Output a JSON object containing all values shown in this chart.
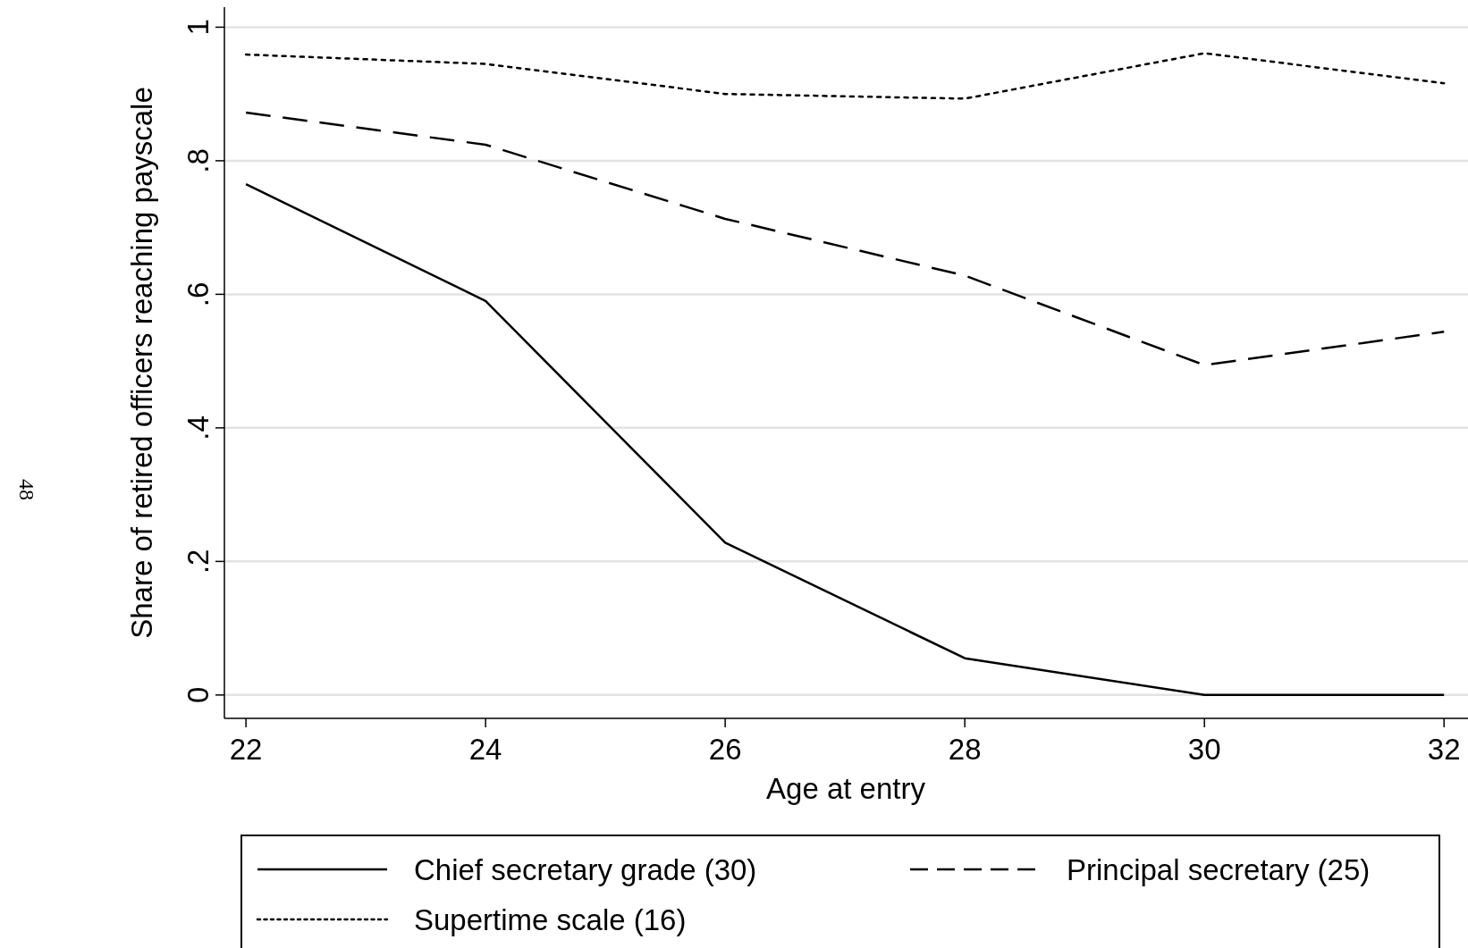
{
  "chart_data": {
    "type": "line",
    "xlabel": "Age at entry",
    "ylabel": "Share of retired officers reaching payscale",
    "x": [
      22,
      24,
      26,
      28,
      30,
      32
    ],
    "series": [
      {
        "name": "Chief secretary grade (30)",
        "color": "#000000",
        "line_style": "solid",
        "values": [
          0.765,
          0.59,
          0.228,
          0.055,
          0,
          0
        ]
      },
      {
        "name": "Principal secretary (25)",
        "color": "#000000",
        "line_style": "dashed",
        "values": [
          0.872,
          0.824,
          0.713,
          0.628,
          0.494,
          0.544
        ]
      },
      {
        "name": "Supertime scale (16)",
        "color": "#000000",
        "line_style": "dotted",
        "values": [
          0.959,
          0.945,
          0.9,
          0.893,
          0.961,
          0.916
        ]
      }
    ],
    "xlim": [
      21.82,
      32.2
    ],
    "ylim": [
      -0.035,
      1.03
    ],
    "xticks": [
      22,
      24,
      26,
      28,
      30,
      32
    ],
    "yticks": [
      {
        "value": 0,
        "label": "0"
      },
      {
        "value": 0.2,
        "label": ".2"
      },
      {
        "value": 0.4,
        "label": ".4"
      },
      {
        "value": 0.6,
        "label": ".6"
      },
      {
        "value": 0.8,
        "label": ".8"
      },
      {
        "value": 1,
        "label": "1"
      }
    ],
    "grid": "y",
    "legend": "bottom",
    "marker": "none",
    "annotations": [
      "48"
    ]
  }
}
